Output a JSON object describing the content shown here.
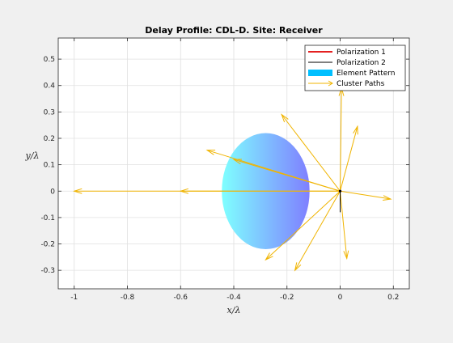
{
  "colors": {
    "figure_bg": "#f0f0f0",
    "axes_bg": "#ffffff",
    "grid": "#e0e0e0",
    "axis": "#262626",
    "polarization1": "#e00000",
    "polarization2": "#000000",
    "element_pattern_left": "#7fffff",
    "element_pattern_right": "#7f7fff",
    "cluster_paths": "#f0b400"
  },
  "chart_data": {
    "type": "line",
    "title": "Delay Profile: CDL-D. Site: Receiver",
    "xlabel": "x/λ",
    "ylabel": "y/λ",
    "xlim": [
      -1.06,
      0.26
    ],
    "ylim": [
      -0.37,
      0.58
    ],
    "xticks": [
      -1,
      -0.8,
      -0.6,
      -0.4,
      -0.2,
      0,
      0.2
    ],
    "xtick_labels": [
      "-1",
      "-0.8",
      "-0.6",
      "-0.4",
      "-0.2",
      "0",
      "0.2"
    ],
    "yticks": [
      -0.3,
      -0.2,
      -0.1,
      0,
      0.1,
      0.2,
      0.3,
      0.4,
      0.5
    ],
    "ytick_labels": [
      "-0.3",
      "-0.2",
      "-0.1",
      "0",
      "0.1",
      "0.2",
      "0.3",
      "0.4",
      "0.5"
    ],
    "grid": true,
    "legend_position": "top-right",
    "legend": [
      {
        "label": "Polarization 1",
        "kind": "line",
        "color": "#e00000"
      },
      {
        "label": "Polarization 2",
        "kind": "line",
        "color": "#000000"
      },
      {
        "label": "Element Pattern",
        "kind": "patch",
        "color": "#00bfff"
      },
      {
        "label": "Cluster Paths",
        "kind": "arrow",
        "color": "#f0b400"
      }
    ],
    "polarization1": {
      "x": [
        -0.005,
        0.005
      ],
      "y": [
        0,
        0
      ]
    },
    "polarization2": {
      "x": [
        0,
        0
      ],
      "y": [
        -0.08,
        0
      ]
    },
    "element_pattern": {
      "center": [
        -0.28,
        0
      ],
      "radius": [
        0.165,
        0.22
      ]
    },
    "cluster_paths": [
      {
        "x_end": -1.0,
        "y_end": 0.0
      },
      {
        "x_end": -0.6,
        "y_end": 0.0
      },
      {
        "x_end": -0.5,
        "y_end": 0.155
      },
      {
        "x_end": -0.4,
        "y_end": 0.12
      },
      {
        "x_end": -0.22,
        "y_end": 0.29
      },
      {
        "x_end": 0.005,
        "y_end": 0.39
      },
      {
        "x_end": 0.065,
        "y_end": 0.245
      },
      {
        "x_end": 0.19,
        "y_end": -0.03
      },
      {
        "x_end": 0.025,
        "y_end": -0.255
      },
      {
        "x_end": -0.17,
        "y_end": -0.3
      },
      {
        "x_end": -0.28,
        "y_end": -0.26
      }
    ]
  }
}
